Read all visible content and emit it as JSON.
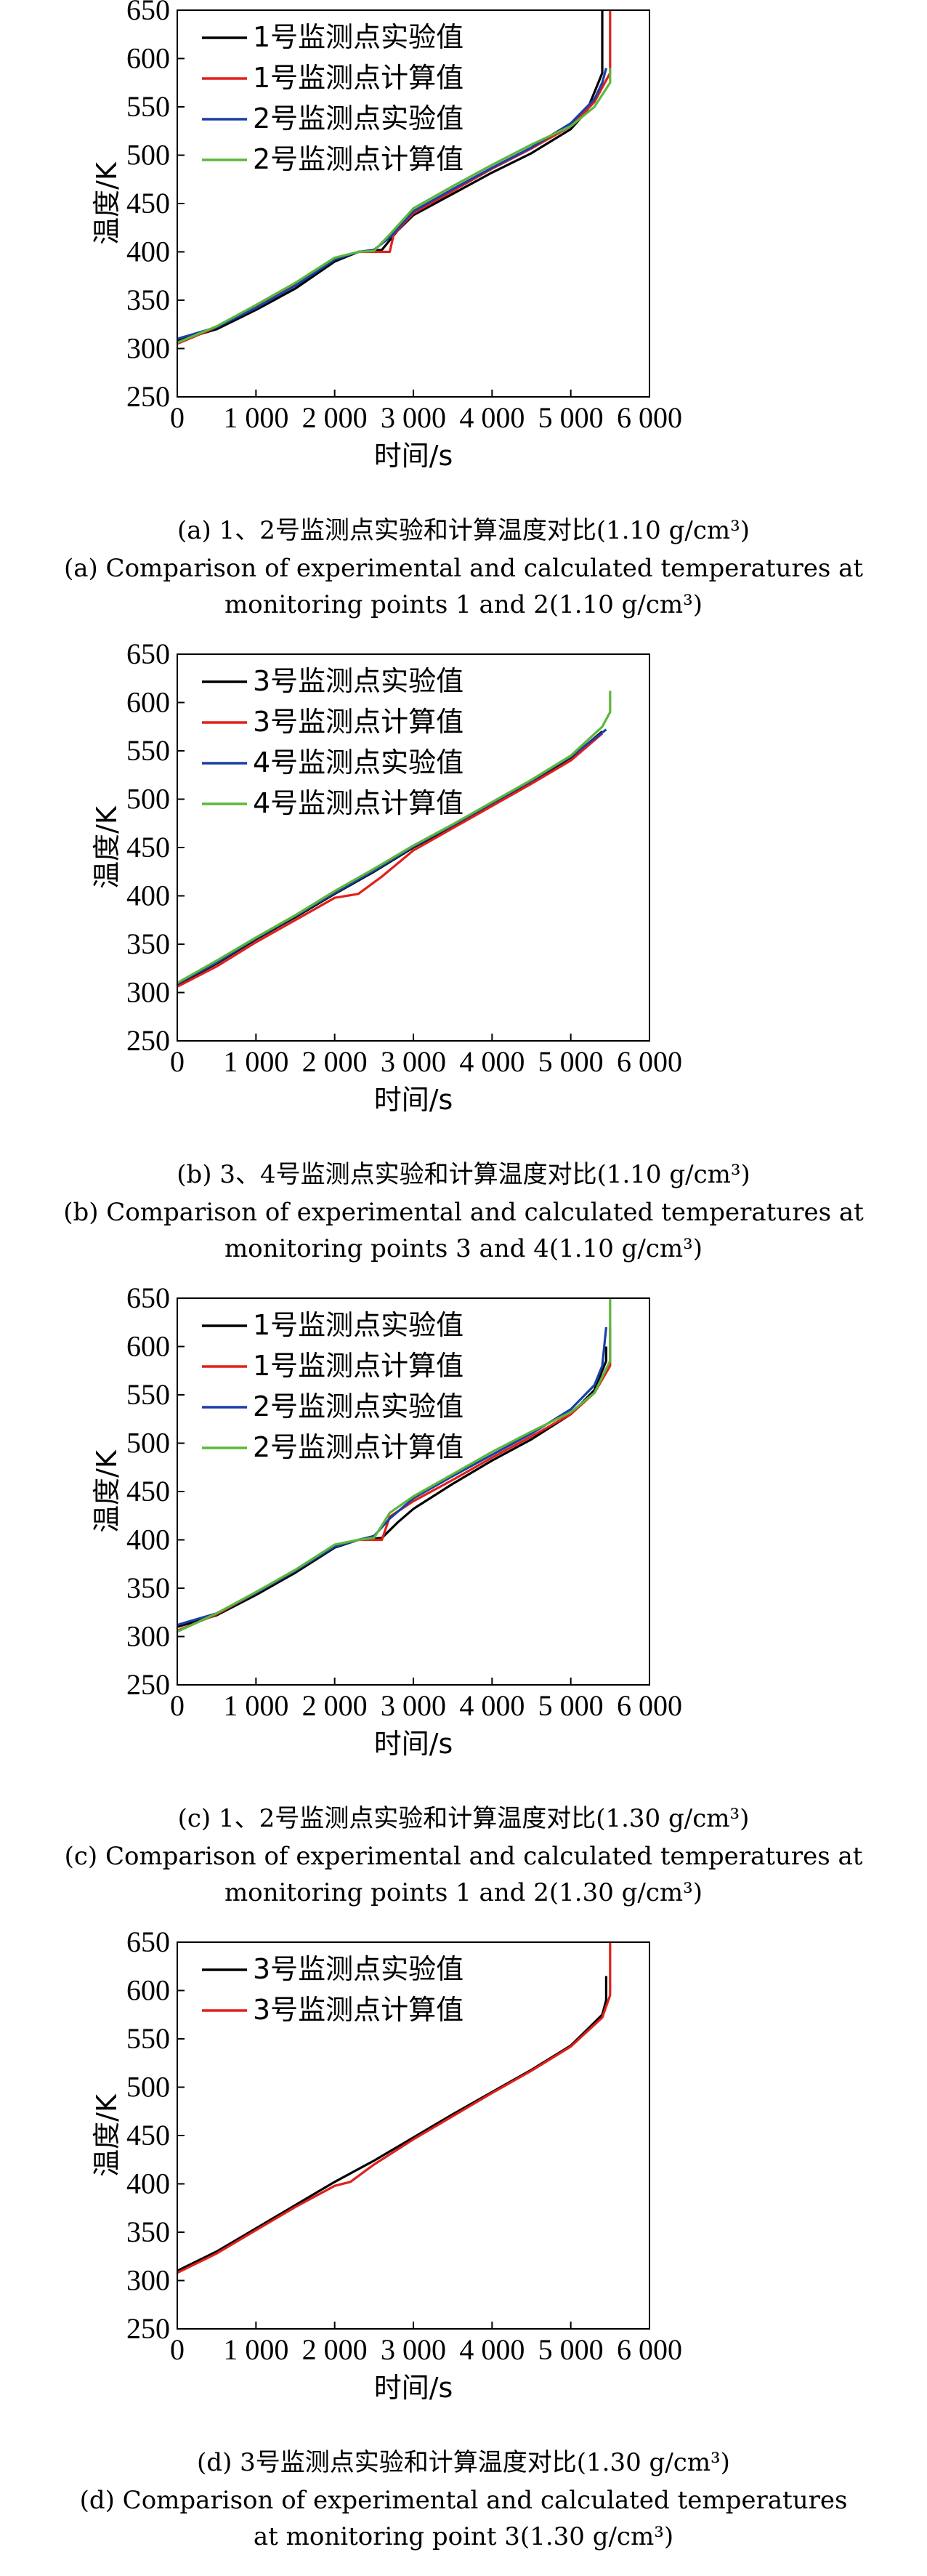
{
  "chart_data": [
    {
      "type": "line",
      "xlabel": "时间/s",
      "ylabel": "温度/K",
      "xlim": [
        0,
        6000
      ],
      "ylim": [
        250,
        650
      ],
      "xticks": [
        0,
        1000,
        2000,
        3000,
        4000,
        5000,
        6000
      ],
      "xtick_labels": [
        "0",
        "1 000",
        "2 000",
        "3 000",
        "4 000",
        "5 000",
        "6 000"
      ],
      "yticks": [
        250,
        300,
        350,
        400,
        450,
        500,
        550,
        600,
        650
      ],
      "legend_position": "top-left",
      "caption_cn": "(a) 1、2号监测点实验和计算温度对比(1.10 g/cm³)",
      "caption_en_1": "(a) Comparison of experimental and calculated temperatures at",
      "caption_en_2": "monitoring points 1 and 2(1.10 g/cm³)",
      "series": [
        {
          "name": "1号监测点实验值",
          "color": "#000000",
          "x": [
            0,
            500,
            1000,
            1500,
            2000,
            2300,
            2600,
            2800,
            3000,
            3500,
            4000,
            4500,
            5000,
            5200,
            5350,
            5400,
            5400
          ],
          "y": [
            308,
            320,
            340,
            362,
            390,
            400,
            402,
            422,
            438,
            460,
            482,
            502,
            527,
            545,
            575,
            585,
            650
          ]
        },
        {
          "name": "1号监测点计算值",
          "color": "#e0201b",
          "x": [
            0,
            500,
            1000,
            1500,
            2000,
            2300,
            2550,
            2700,
            2750,
            3000,
            3500,
            4000,
            4500,
            5000,
            5300,
            5500,
            5500
          ],
          "y": [
            305,
            322,
            343,
            366,
            393,
            400,
            400,
            400,
            418,
            440,
            463,
            486,
            507,
            530,
            555,
            585,
            650
          ]
        },
        {
          "name": "2号监测点实验值",
          "color": "#1a3fa8",
          "x": [
            0,
            500,
            1000,
            1500,
            2000,
            2300,
            2500,
            2700,
            3000,
            3500,
            4000,
            4500,
            5000,
            5300,
            5400,
            5450
          ],
          "y": [
            310,
            322,
            342,
            365,
            392,
            400,
            402,
            415,
            442,
            465,
            487,
            508,
            533,
            558,
            575,
            590
          ]
        },
        {
          "name": "2号监测点计算值",
          "color": "#5cb83a",
          "x": [
            0,
            500,
            1000,
            1500,
            2000,
            2300,
            2500,
            2700,
            3000,
            3500,
            4000,
            4500,
            5000,
            5300,
            5500,
            5500
          ],
          "y": [
            306,
            323,
            345,
            368,
            394,
            400,
            401,
            418,
            445,
            468,
            490,
            511,
            530,
            550,
            575,
            590
          ]
        }
      ]
    },
    {
      "type": "line",
      "xlabel": "时间/s",
      "ylabel": "温度/K",
      "xlim": [
        0,
        6000
      ],
      "ylim": [
        250,
        650
      ],
      "xticks": [
        0,
        1000,
        2000,
        3000,
        4000,
        5000,
        6000
      ],
      "xtick_labels": [
        "0",
        "1 000",
        "2 000",
        "3 000",
        "4 000",
        "5 000",
        "6 000"
      ],
      "yticks": [
        250,
        300,
        350,
        400,
        450,
        500,
        550,
        600,
        650
      ],
      "legend_position": "top-left",
      "caption_cn": "(b) 3、4号监测点实验和计算温度对比(1.10 g/cm³)",
      "caption_en_1": "(b) Comparison of experimental and calculated temperatures at",
      "caption_en_2": "monitoring points 3 and 4(1.10 g/cm³)",
      "series": [
        {
          "name": "3号监测点实验值",
          "color": "#000000",
          "x": [
            0,
            500,
            1000,
            1500,
            2000,
            2500,
            3000,
            3500,
            4000,
            4500,
            5000,
            5400
          ],
          "y": [
            308,
            330,
            355,
            378,
            402,
            425,
            450,
            472,
            495,
            518,
            543,
            570
          ]
        },
        {
          "name": "3号监测点计算值",
          "color": "#e0201b",
          "x": [
            0,
            500,
            1000,
            1500,
            2000,
            2300,
            2600,
            3000,
            3500,
            4000,
            4500,
            5000,
            5400
          ],
          "y": [
            306,
            327,
            352,
            375,
            398,
            402,
            420,
            447,
            470,
            493,
            516,
            540,
            568
          ]
        },
        {
          "name": "4号监测点实验值",
          "color": "#1a3fa8",
          "x": [
            0,
            500,
            1000,
            1500,
            2000,
            2500,
            3000,
            3500,
            4000,
            4500,
            5000,
            5450
          ],
          "y": [
            309,
            331,
            356,
            379,
            403,
            426,
            451,
            473,
            496,
            519,
            544,
            572
          ]
        },
        {
          "name": "4号监测点计算值",
          "color": "#5cb83a",
          "x": [
            0,
            500,
            1000,
            1500,
            2000,
            2500,
            3000,
            3500,
            4000,
            4500,
            5000,
            5400,
            5500,
            5500
          ],
          "y": [
            310,
            333,
            357,
            380,
            405,
            428,
            452,
            474,
            497,
            520,
            545,
            575,
            590,
            612
          ]
        }
      ]
    },
    {
      "type": "line",
      "xlabel": "时间/s",
      "ylabel": "温度/K",
      "xlim": [
        0,
        6000
      ],
      "ylim": [
        250,
        650
      ],
      "xticks": [
        0,
        1000,
        2000,
        3000,
        4000,
        5000,
        6000
      ],
      "xtick_labels": [
        "0",
        "1 000",
        "2 000",
        "3 000",
        "4 000",
        "5 000",
        "6 000"
      ],
      "yticks": [
        250,
        300,
        350,
        400,
        450,
        500,
        550,
        600,
        650
      ],
      "legend_position": "top-left",
      "caption_cn": "(c) 1、2号监测点实验和计算温度对比(1.30 g/cm³)",
      "caption_en_1": "(c) Comparison of experimental and calculated temperatures at",
      "caption_en_2": "monitoring points 1 and 2(1.30 g/cm³)",
      "series": [
        {
          "name": "1号监测点实验值",
          "color": "#000000",
          "x": [
            0,
            500,
            1000,
            1500,
            2000,
            2300,
            2600,
            2800,
            3000,
            3500,
            4000,
            4500,
            5000,
            5300,
            5450,
            5450
          ],
          "y": [
            310,
            322,
            343,
            366,
            392,
            400,
            402,
            418,
            432,
            458,
            482,
            504,
            530,
            555,
            585,
            600
          ]
        },
        {
          "name": "1号监测点计算值",
          "color": "#e0201b",
          "x": [
            0,
            500,
            1000,
            1500,
            2000,
            2300,
            2500,
            2600,
            2700,
            3000,
            3500,
            4000,
            4500,
            5000,
            5300,
            5500,
            5500
          ],
          "y": [
            306,
            323,
            345,
            368,
            394,
            400,
            400,
            400,
            424,
            440,
            462,
            485,
            507,
            530,
            552,
            580,
            620
          ]
        },
        {
          "name": "2号监测点实验值",
          "color": "#1a3fa8",
          "x": [
            0,
            500,
            1000,
            1500,
            2000,
            2300,
            2500,
            2700,
            3000,
            3500,
            4000,
            4500,
            5000,
            5300,
            5400,
            5450
          ],
          "y": [
            312,
            324,
            345,
            368,
            393,
            400,
            404,
            422,
            443,
            466,
            488,
            510,
            535,
            560,
            580,
            620
          ]
        },
        {
          "name": "2号监测点计算值",
          "color": "#5cb83a",
          "x": [
            0,
            500,
            1000,
            1500,
            2000,
            2300,
            2500,
            2700,
            3000,
            3500,
            4000,
            4500,
            5000,
            5300,
            5500,
            5500
          ],
          "y": [
            305,
            324,
            346,
            369,
            395,
            400,
            402,
            428,
            445,
            468,
            491,
            512,
            532,
            552,
            585,
            650
          ]
        }
      ]
    },
    {
      "type": "line",
      "xlabel": "时间/s",
      "ylabel": "温度/K",
      "xlim": [
        0,
        6000
      ],
      "ylim": [
        250,
        650
      ],
      "xticks": [
        0,
        1000,
        2000,
        3000,
        4000,
        5000,
        6000
      ],
      "xtick_labels": [
        "0",
        "1 000",
        "2 000",
        "3 000",
        "4 000",
        "5 000",
        "6 000"
      ],
      "yticks": [
        250,
        300,
        350,
        400,
        450,
        500,
        550,
        600,
        650
      ],
      "legend_position": "top-left",
      "caption_cn": "(d) 3号监测点实验和计算温度对比(1.30 g/cm³)",
      "caption_en_1": "(d) Comparison of experimental and calculated temperatures",
      "caption_en_2": "at monitoring point 3(1.30 g/cm³)",
      "series": [
        {
          "name": "3号监测点实验值",
          "color": "#000000",
          "x": [
            0,
            500,
            1000,
            1500,
            2000,
            2500,
            3000,
            3500,
            4000,
            4500,
            5000,
            5400,
            5450,
            5450
          ],
          "y": [
            310,
            330,
            354,
            378,
            402,
            424,
            448,
            472,
            495,
            518,
            543,
            575,
            590,
            615
          ]
        },
        {
          "name": "3号监测点计算值",
          "color": "#e0201b",
          "x": [
            0,
            500,
            1000,
            1500,
            2000,
            2200,
            2500,
            3000,
            3500,
            4000,
            4500,
            5000,
            5400,
            5500,
            5500
          ],
          "y": [
            308,
            328,
            352,
            376,
            398,
            402,
            420,
            446,
            470,
            494,
            517,
            542,
            572,
            595,
            650
          ]
        }
      ]
    }
  ]
}
